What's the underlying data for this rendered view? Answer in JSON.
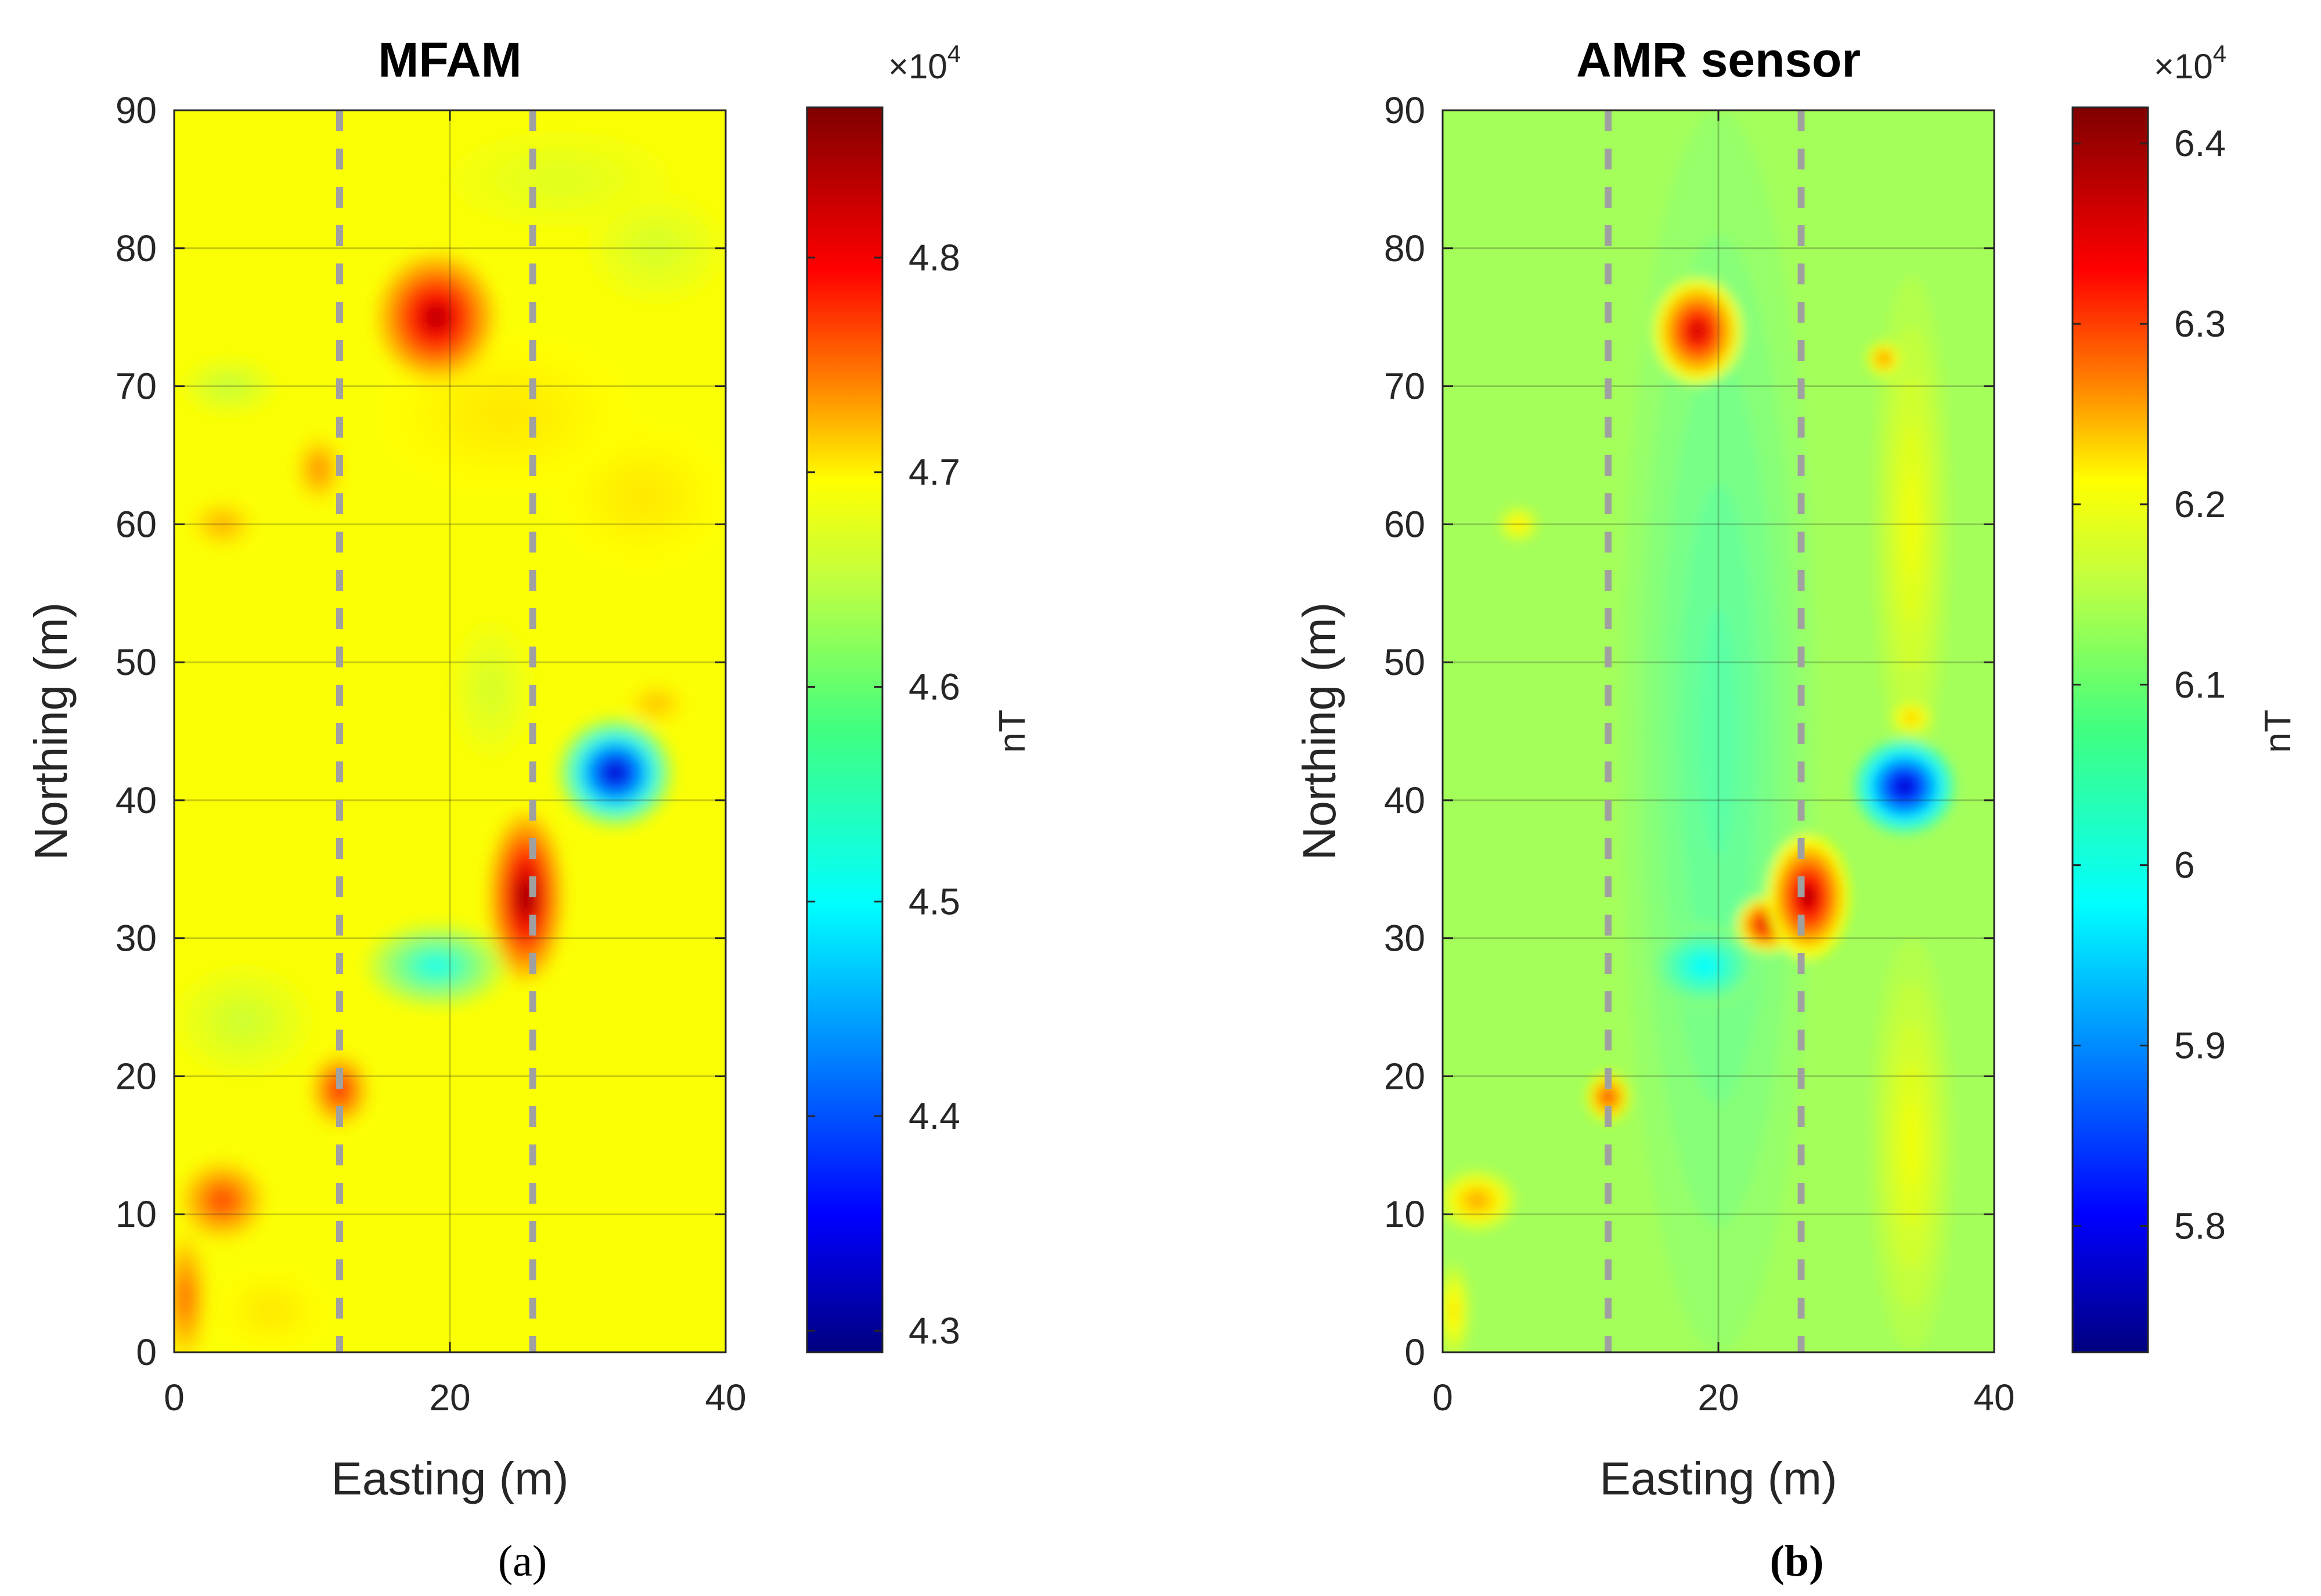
{
  "chart_data": [
    {
      "type": "heatmap",
      "panel": "a",
      "title": "MFAM",
      "xlabel": "Easting (m)",
      "ylabel": "Northing (m)",
      "xlim": [
        0,
        40
      ],
      "ylim": [
        0,
        90
      ],
      "xticks": [
        0,
        20,
        40
      ],
      "yticks": [
        0,
        10,
        20,
        30,
        40,
        50,
        60,
        70,
        80,
        90
      ],
      "grid": true,
      "background_value": 4.65,
      "guide_lines_x": [
        12,
        26
      ],
      "colorbar": {
        "label": "nT",
        "multiplier": "×10",
        "exponent": "4",
        "range": [
          4.29,
          4.87
        ],
        "ticks": [
          4.3,
          4.4,
          4.5,
          4.6,
          4.7,
          4.8
        ]
      },
      "anomalies": [
        {
          "x": 19,
          "y": 75,
          "rx": 4.2,
          "ry": 4.5,
          "value": 4.84
        },
        {
          "x": 25.5,
          "y": 33,
          "rx": 2.6,
          "ry": 6.0,
          "value": 4.86
        },
        {
          "x": 32,
          "y": 42,
          "rx": 4.0,
          "ry": 3.8,
          "value": 4.33
        },
        {
          "x": 19,
          "y": 28,
          "rx": 5.0,
          "ry": 3.0,
          "value": 4.52
        },
        {
          "x": 12,
          "y": 19,
          "rx": 2.0,
          "ry": 2.5,
          "value": 4.78
        },
        {
          "x": 3.5,
          "y": 11,
          "rx": 3.0,
          "ry": 2.8,
          "value": 4.76
        },
        {
          "x": 0.8,
          "y": 4,
          "rx": 1.5,
          "ry": 4.5,
          "value": 4.74
        },
        {
          "x": 10.5,
          "y": 64,
          "rx": 1.6,
          "ry": 2.3,
          "value": 4.72
        },
        {
          "x": 3.5,
          "y": 60,
          "rx": 2.2,
          "ry": 1.6,
          "value": 4.7
        },
        {
          "x": 35,
          "y": 47,
          "rx": 2.0,
          "ry": 1.4,
          "value": 4.69
        },
        {
          "x": 7,
          "y": 3,
          "rx": 4.0,
          "ry": 3.0,
          "value": 4.665
        },
        {
          "x": 4,
          "y": 70,
          "rx": 3.5,
          "ry": 2.0,
          "value": 4.62
        },
        {
          "x": 28,
          "y": 85,
          "rx": 8.0,
          "ry": 3.5,
          "value": 4.635
        },
        {
          "x": 35,
          "y": 80,
          "rx": 5.0,
          "ry": 4.0,
          "value": 4.63
        },
        {
          "x": 34,
          "y": 62,
          "rx": 6.0,
          "ry": 5.0,
          "value": 4.665
        },
        {
          "x": 24,
          "y": 68,
          "rx": 9.0,
          "ry": 5.5,
          "value": 4.665
        },
        {
          "x": 5,
          "y": 24,
          "rx": 5.0,
          "ry": 4.0,
          "value": 4.625
        },
        {
          "x": 23,
          "y": 48,
          "rx": 3.0,
          "ry": 5.0,
          "value": 4.63
        }
      ]
    },
    {
      "type": "heatmap",
      "panel": "b",
      "title": "AMR sensor",
      "xlabel": "Easting (m)",
      "ylabel": "Northing (m)",
      "xlim": [
        0,
        40
      ],
      "ylim": [
        0,
        90
      ],
      "xticks": [
        0,
        20,
        40
      ],
      "yticks": [
        0,
        10,
        20,
        30,
        40,
        50,
        60,
        70,
        80,
        90
      ],
      "grid": true,
      "background_value": 6.1,
      "guide_lines_x": [
        12,
        26
      ],
      "colorbar": {
        "label": "nT",
        "multiplier": "×10",
        "exponent": "4",
        "range": [
          5.73,
          6.42
        ],
        "ticks": [
          5.8,
          5.9,
          6.0,
          6.1,
          6.2,
          6.3,
          6.4
        ]
      },
      "anomalies": [
        {
          "x": 18.5,
          "y": 74,
          "rx": 3.2,
          "ry": 3.8,
          "value": 6.36
        },
        {
          "x": 26.5,
          "y": 33,
          "rx": 3.0,
          "ry": 4.5,
          "value": 6.38
        },
        {
          "x": 23.5,
          "y": 31,
          "rx": 2.2,
          "ry": 2.0,
          "value": 6.36
        },
        {
          "x": 33.5,
          "y": 41,
          "rx": 3.6,
          "ry": 3.4,
          "value": 5.79
        },
        {
          "x": 19,
          "y": 28,
          "rx": 4.0,
          "ry": 3.0,
          "value": 5.99
        },
        {
          "x": 12,
          "y": 18.5,
          "rx": 1.6,
          "ry": 1.8,
          "value": 6.29
        },
        {
          "x": 2.5,
          "y": 11,
          "rx": 2.8,
          "ry": 2.2,
          "value": 6.22
        },
        {
          "x": 5.5,
          "y": 60,
          "rx": 1.5,
          "ry": 1.3,
          "value": 6.18
        },
        {
          "x": 32,
          "y": 72,
          "rx": 1.3,
          "ry": 1.3,
          "value": 6.24
        },
        {
          "x": 34,
          "y": 46,
          "rx": 1.6,
          "ry": 1.3,
          "value": 6.2
        },
        {
          "x": 34,
          "y": 60,
          "rx": 2.8,
          "ry": 18.0,
          "value": 6.15
        },
        {
          "x": 34,
          "y": 15,
          "rx": 3.0,
          "ry": 15.0,
          "value": 6.15
        },
        {
          "x": 20,
          "y": 45,
          "rx": 7.0,
          "ry": 45.0,
          "value": 6.05
        },
        {
          "x": 0.8,
          "y": 3,
          "rx": 1.2,
          "ry": 3.5,
          "value": 6.18
        }
      ]
    }
  ],
  "captions": {
    "a": "(a)",
    "b": "(b)"
  }
}
